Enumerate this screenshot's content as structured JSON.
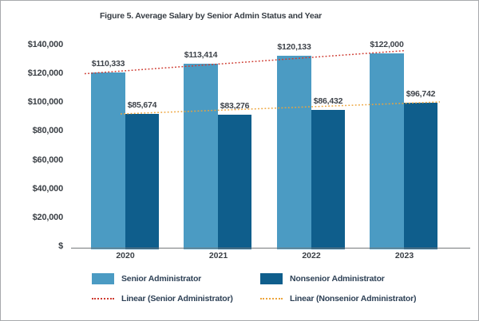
{
  "figure": {
    "title": "Figure 5. Average Salary by Senior Admin Status and Year"
  },
  "colors": {
    "senior": "#4b9bc3",
    "nonsenior": "#0f5e8c",
    "senior_trend": "#ce3a30",
    "nonsenior_trend": "#eda43b",
    "axis_line": "#75787b",
    "text": "#3a3f45",
    "legend_text": "#2e4156"
  },
  "chart_data": {
    "type": "bar",
    "title": "Figure 5. Average Salary by Senior Admin Status and Year",
    "categories": [
      "2020",
      "2021",
      "2022",
      "2023"
    ],
    "series": [
      {
        "name": "Senior Administrator",
        "values": [
          110333,
          113414,
          120133,
          122000
        ],
        "labels": [
          "$110,333",
          "$113,414",
          "$120,133",
          "$122,000"
        ],
        "color": "#4b9bc3"
      },
      {
        "name": "Nonsenior Administrator",
        "values": [
          85674,
          83276,
          86432,
          96742
        ],
        "labels": [
          "$85,674",
          "$83,276",
          "$86,432",
          "$96,742"
        ],
        "color": "#0f5e8c"
      }
    ],
    "trendlines": [
      {
        "name": "Linear (Senior Administrator)",
        "type": "linear",
        "style": "dotted",
        "color": "#ce3a30"
      },
      {
        "name": "Linear (Nonsenior Administrator)",
        "type": "linear",
        "style": "dotted",
        "color": "#eda43b"
      }
    ],
    "y_axis": {
      "tick_labels": [
        "$140,000",
        "$120,000",
        "$100,000",
        "$80,000",
        "$60,000",
        "$40,000",
        "$20,000",
        "$"
      ],
      "ylim": [
        0,
        140000
      ],
      "tick_step": 20000,
      "grid": false
    },
    "legend_position": "bottom"
  },
  "legend": {
    "items": [
      {
        "label": "Senior Administrator",
        "marker": "swatch",
        "color": "#4b9bc3"
      },
      {
        "label": "Nonsenior Administrator",
        "marker": "swatch",
        "color": "#0f5e8c"
      },
      {
        "label": "Linear (Senior Administrator)",
        "marker": "dotted-line",
        "color": "#ce3a30"
      },
      {
        "label": "Linear (Nonsenior Administrator)",
        "marker": "dotted-line",
        "color": "#eda43b"
      }
    ]
  }
}
